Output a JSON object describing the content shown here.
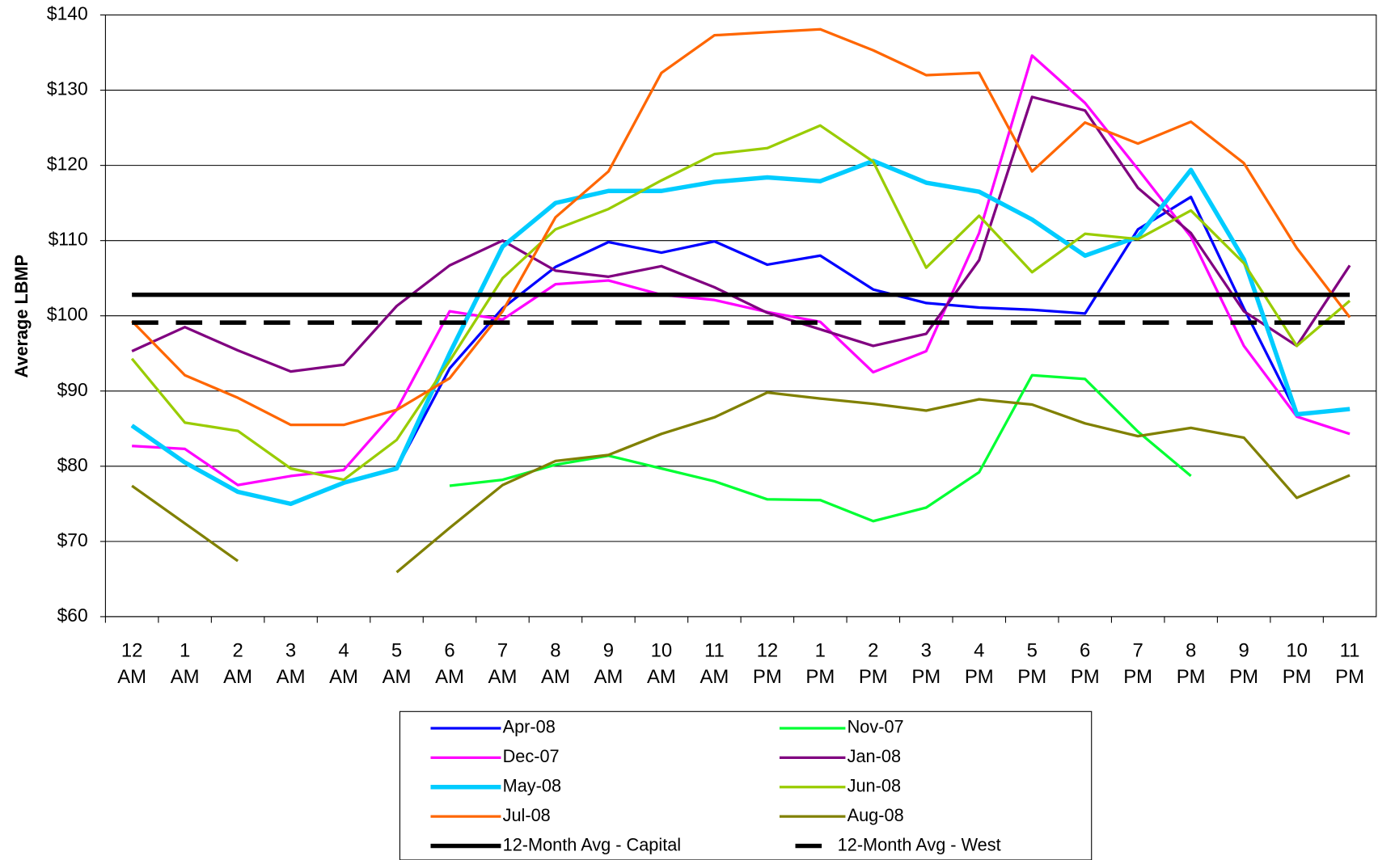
{
  "chart_data": {
    "type": "line",
    "ylabel": "Average LBMP",
    "categories": [
      "12 AM",
      "1 AM",
      "2 AM",
      "3 AM",
      "4 AM",
      "5 AM",
      "6 AM",
      "7 AM",
      "8 AM",
      "9 AM",
      "10 AM",
      "11 AM",
      "12 PM",
      "1 PM",
      "2 PM",
      "3 PM",
      "4 PM",
      "5 PM",
      "6 PM",
      "7 PM",
      "8 PM",
      "9 PM",
      "10 PM",
      "11 PM"
    ],
    "ylim": [
      60,
      140
    ],
    "yticks": [
      {
        "value": 60,
        "label": "$60"
      },
      {
        "value": 70,
        "label": "$70"
      },
      {
        "value": 80,
        "label": "$80"
      },
      {
        "value": 90,
        "label": "$90"
      },
      {
        "value": 100,
        "label": "$100"
      },
      {
        "value": 110,
        "label": "$110"
      },
      {
        "value": 120,
        "label": "$120"
      },
      {
        "value": 130,
        "label": "$130"
      },
      {
        "value": 140,
        "label": "$140"
      }
    ],
    "grid": true,
    "legend": "bottom",
    "series": [
      {
        "name": "Apr-08",
        "color": "#0000ff",
        "style": "normal",
        "values": [
          85.4,
          80.5,
          76.6,
          75,
          77.8,
          79.7,
          93,
          101,
          106.5,
          109.8,
          108.4,
          109.9,
          106.8,
          108,
          103.5,
          101.7,
          101.1,
          100.8,
          100.3,
          111.5,
          115.8,
          101,
          87,
          87.6
        ]
      },
      {
        "name": "Nov-07",
        "color": "#00ff33",
        "style": "normal",
        "values": [
          null,
          null,
          null,
          null,
          null,
          null,
          77.4,
          78.2,
          80.2,
          81.4,
          79.7,
          78,
          75.6,
          75.5,
          72.7,
          74.5,
          79.2,
          92.1,
          91.6,
          84.6,
          78.7,
          null,
          null,
          null
        ]
      },
      {
        "name": "Dec-07",
        "color": "#ff00ff",
        "style": "normal",
        "values": [
          82.7,
          82.3,
          77.5,
          78.7,
          79.5,
          87.5,
          100.6,
          99.5,
          104.2,
          104.7,
          102.8,
          102.1,
          100.5,
          99.2,
          92.5,
          95.3,
          111,
          134.6,
          128.3,
          119.5,
          110.5,
          96,
          86.6,
          84.3
        ]
      },
      {
        "name": "Jan-08",
        "color": "#800080",
        "style": "normal",
        "values": [
          95.3,
          98.5,
          95.4,
          92.6,
          93.5,
          101.3,
          106.7,
          110,
          106,
          105.2,
          106.6,
          103.8,
          100.4,
          98.2,
          96,
          97.6,
          107.4,
          129.1,
          127.3,
          117,
          111,
          100.6,
          96,
          106.7
        ]
      },
      {
        "name": "May-08",
        "color": "#00ccff",
        "style": "thick",
        "values": [
          85.4,
          80.5,
          76.6,
          75,
          77.8,
          79.7,
          95,
          109.2,
          115,
          116.6,
          116.6,
          117.8,
          118.4,
          117.9,
          120.6,
          117.7,
          116.5,
          112.8,
          108,
          110.5,
          119.4,
          107.5,
          86.9,
          87.6
        ]
      },
      {
        "name": "Jun-08",
        "color": "#99cc00",
        "style": "normal",
        "values": [
          94.3,
          85.8,
          84.7,
          79.7,
          78.2,
          83.5,
          94,
          105,
          111.5,
          114.2,
          118,
          121.5,
          122.3,
          125.3,
          120.5,
          106.4,
          113.3,
          105.8,
          110.9,
          110.2,
          114,
          107,
          96,
          102
        ]
      },
      {
        "name": "Jul-08",
        "color": "#ff6600",
        "style": "normal",
        "values": [
          99.3,
          92.1,
          89.1,
          85.5,
          85.5,
          87.5,
          91.7,
          100.6,
          113.1,
          119.2,
          132.3,
          137.3,
          137.7,
          138.1,
          135.3,
          132,
          132.3,
          119.2,
          125.7,
          122.9,
          125.8,
          120.3,
          109,
          99.8
        ]
      },
      {
        "name": "Aug-08",
        "color": "#808000",
        "style": "normal",
        "values": [
          77.4,
          72.4,
          67.4,
          null,
          null,
          65.9,
          71.8,
          77.5,
          80.7,
          81.5,
          84.3,
          86.5,
          89.8,
          89,
          88.3,
          87.4,
          88.9,
          88.2,
          85.7,
          84,
          85.1,
          83.8,
          75.8,
          78.8
        ]
      },
      {
        "name": "12-Month Avg - Capital",
        "color": "#000000",
        "style": "thick",
        "values": [
          102.8,
          102.8,
          102.8,
          102.8,
          102.8,
          102.8,
          102.8,
          102.8,
          102.8,
          102.8,
          102.8,
          102.8,
          102.8,
          102.8,
          102.8,
          102.8,
          102.8,
          102.8,
          102.8,
          102.8,
          102.8,
          102.8,
          102.8,
          102.8
        ]
      },
      {
        "name": "12-Month Avg - West",
        "color": "#000000",
        "style": "dashed",
        "values": [
          99.1,
          99.1,
          99.1,
          99.1,
          99.1,
          99.1,
          99.1,
          99.1,
          99.1,
          99.1,
          99.1,
          99.1,
          99.1,
          99.1,
          99.1,
          99.1,
          99.1,
          99.1,
          99.1,
          99.1,
          99.1,
          99.1,
          99.1,
          99.1
        ]
      }
    ]
  }
}
